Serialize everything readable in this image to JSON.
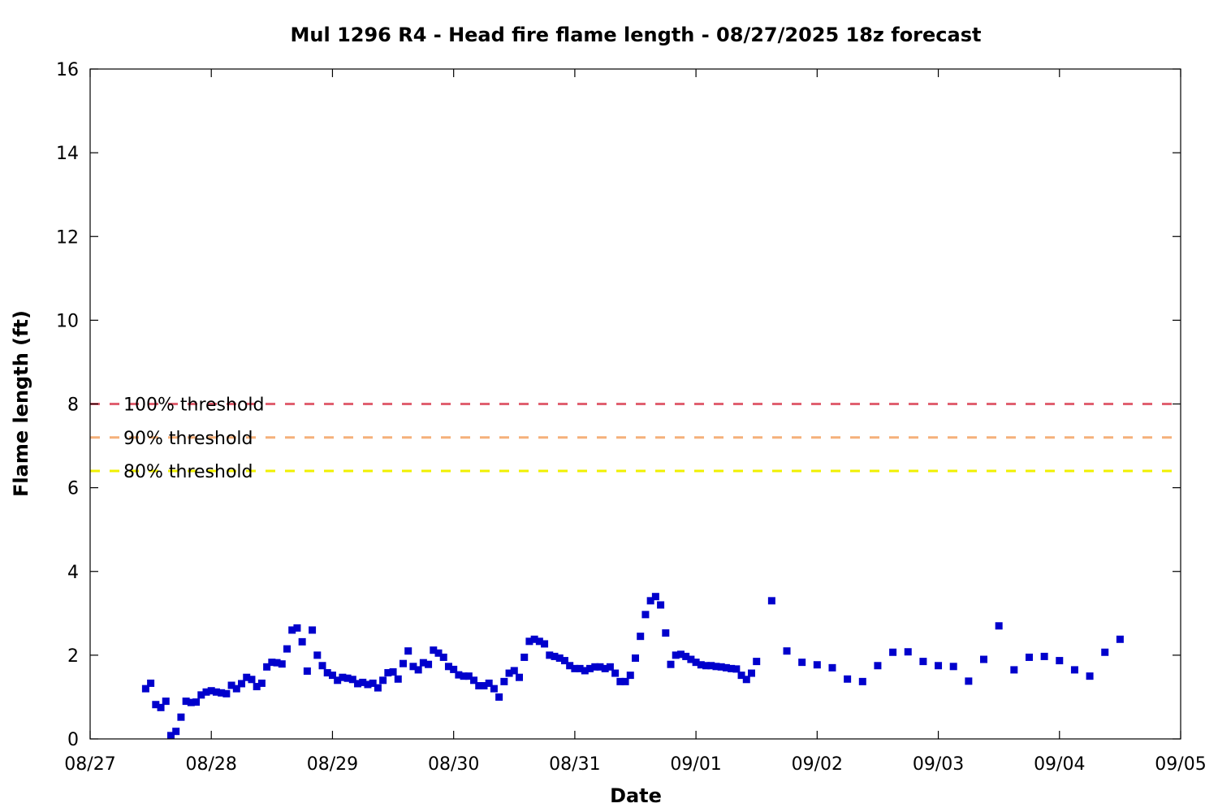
{
  "chart_data": {
    "type": "scatter",
    "title": "Mul 1296 R4 - Head fire flame length - 08/27/2025 18z forecast",
    "xlabel": "Date",
    "ylabel": "Flame length (ft)",
    "x_unit": "hours after 08/27 00:00",
    "xlim": [
      0,
      216
    ],
    "ylim": [
      0,
      16
    ],
    "y_ticks": [
      "0",
      "2",
      "4",
      "6",
      "8",
      "10",
      "12",
      "14",
      "16"
    ],
    "x_ticks": [
      "08/27",
      "08/28",
      "08/29",
      "08/30",
      "08/31",
      "09/01",
      "09/02",
      "09/03",
      "09/04",
      "09/05"
    ],
    "grid": false,
    "marker_color": "#0000cc",
    "thresholds": [
      {
        "label": "100% threshold",
        "value": 8.0,
        "color": "#e06070"
      },
      {
        "label": "90% threshold",
        "value": 7.2,
        "color": "#f5b07a"
      },
      {
        "label": "80% threshold",
        "value": 6.4,
        "color": "#f0f000"
      }
    ],
    "series": [
      {
        "name": "",
        "points": [
          [
            11,
            1.2
          ],
          [
            12,
            1.33
          ],
          [
            13,
            0.82
          ],
          [
            14,
            0.75
          ],
          [
            15,
            0.9
          ],
          [
            16,
            0.08
          ],
          [
            17,
            0.18
          ],
          [
            18,
            0.52
          ],
          [
            19,
            0.9
          ],
          [
            20,
            0.87
          ],
          [
            21,
            0.88
          ],
          [
            22,
            1.05
          ],
          [
            23,
            1.12
          ],
          [
            24,
            1.15
          ],
          [
            25,
            1.12
          ],
          [
            26,
            1.1
          ],
          [
            27,
            1.08
          ],
          [
            28,
            1.28
          ],
          [
            29,
            1.2
          ],
          [
            30,
            1.32
          ],
          [
            31,
            1.47
          ],
          [
            32,
            1.42
          ],
          [
            33,
            1.25
          ],
          [
            34,
            1.33
          ],
          [
            35,
            1.72
          ],
          [
            36,
            1.83
          ],
          [
            37,
            1.82
          ],
          [
            38,
            1.79
          ],
          [
            39,
            2.15
          ],
          [
            40,
            2.6
          ],
          [
            41,
            2.65
          ],
          [
            42,
            2.32
          ],
          [
            43,
            1.62
          ],
          [
            44,
            2.6
          ],
          [
            45,
            2.0
          ],
          [
            46,
            1.75
          ],
          [
            47,
            1.58
          ],
          [
            48,
            1.52
          ],
          [
            49,
            1.4
          ],
          [
            50,
            1.47
          ],
          [
            51,
            1.45
          ],
          [
            52,
            1.42
          ],
          [
            53,
            1.32
          ],
          [
            54,
            1.35
          ],
          [
            55,
            1.3
          ],
          [
            56,
            1.33
          ],
          [
            57,
            1.22
          ],
          [
            58,
            1.4
          ],
          [
            59,
            1.58
          ],
          [
            60,
            1.6
          ],
          [
            61,
            1.43
          ],
          [
            62,
            1.8
          ],
          [
            63,
            2.1
          ],
          [
            64,
            1.73
          ],
          [
            65,
            1.65
          ],
          [
            66,
            1.82
          ],
          [
            67,
            1.78
          ],
          [
            68,
            2.12
          ],
          [
            69,
            2.05
          ],
          [
            70,
            1.95
          ],
          [
            71,
            1.73
          ],
          [
            72,
            1.66
          ],
          [
            73,
            1.53
          ],
          [
            74,
            1.5
          ],
          [
            75,
            1.5
          ],
          [
            76,
            1.4
          ],
          [
            77,
            1.27
          ],
          [
            78,
            1.27
          ],
          [
            79,
            1.33
          ],
          [
            80,
            1.2
          ],
          [
            81,
            1.0
          ],
          [
            82,
            1.37
          ],
          [
            83,
            1.57
          ],
          [
            84,
            1.63
          ],
          [
            85,
            1.47
          ],
          [
            86,
            1.95
          ],
          [
            87,
            2.33
          ],
          [
            88,
            2.38
          ],
          [
            89,
            2.33
          ],
          [
            90,
            2.27
          ],
          [
            91,
            2.0
          ],
          [
            92,
            1.97
          ],
          [
            93,
            1.93
          ],
          [
            94,
            1.87
          ],
          [
            95,
            1.75
          ],
          [
            96,
            1.68
          ],
          [
            97,
            1.68
          ],
          [
            98,
            1.63
          ],
          [
            99,
            1.68
          ],
          [
            100,
            1.72
          ],
          [
            101,
            1.72
          ],
          [
            102,
            1.68
          ],
          [
            103,
            1.72
          ],
          [
            104,
            1.57
          ],
          [
            105,
            1.37
          ],
          [
            106,
            1.37
          ],
          [
            107,
            1.52
          ],
          [
            108,
            1.93
          ],
          [
            109,
            2.45
          ],
          [
            110,
            2.97
          ],
          [
            111,
            3.3
          ],
          [
            112,
            3.4
          ],
          [
            113,
            3.2
          ],
          [
            114,
            2.53
          ],
          [
            115,
            1.78
          ],
          [
            116,
            2.0
          ],
          [
            117,
            2.02
          ],
          [
            118,
            1.97
          ],
          [
            119,
            1.9
          ],
          [
            120,
            1.83
          ],
          [
            121,
            1.77
          ],
          [
            122,
            1.75
          ],
          [
            123,
            1.75
          ],
          [
            124,
            1.73
          ],
          [
            125,
            1.72
          ],
          [
            126,
            1.7
          ],
          [
            127,
            1.68
          ],
          [
            128,
            1.67
          ],
          [
            129,
            1.52
          ],
          [
            130,
            1.42
          ],
          [
            131,
            1.57
          ],
          [
            132,
            1.85
          ],
          [
            135,
            3.3
          ],
          [
            138,
            2.1
          ],
          [
            141,
            1.83
          ],
          [
            144,
            1.77
          ],
          [
            147,
            1.7
          ],
          [
            150,
            1.43
          ],
          [
            153,
            1.37
          ],
          [
            156,
            1.75
          ],
          [
            159,
            2.07
          ],
          [
            162,
            2.08
          ],
          [
            165,
            1.85
          ],
          [
            168,
            1.75
          ],
          [
            171,
            1.73
          ],
          [
            174,
            1.38
          ],
          [
            177,
            1.9
          ],
          [
            180,
            2.7
          ],
          [
            183,
            1.65
          ],
          [
            186,
            1.95
          ],
          [
            189,
            1.97
          ],
          [
            192,
            1.87
          ],
          [
            195,
            1.65
          ],
          [
            198,
            1.5
          ],
          [
            201,
            2.07
          ],
          [
            204,
            2.38
          ]
        ]
      }
    ]
  }
}
